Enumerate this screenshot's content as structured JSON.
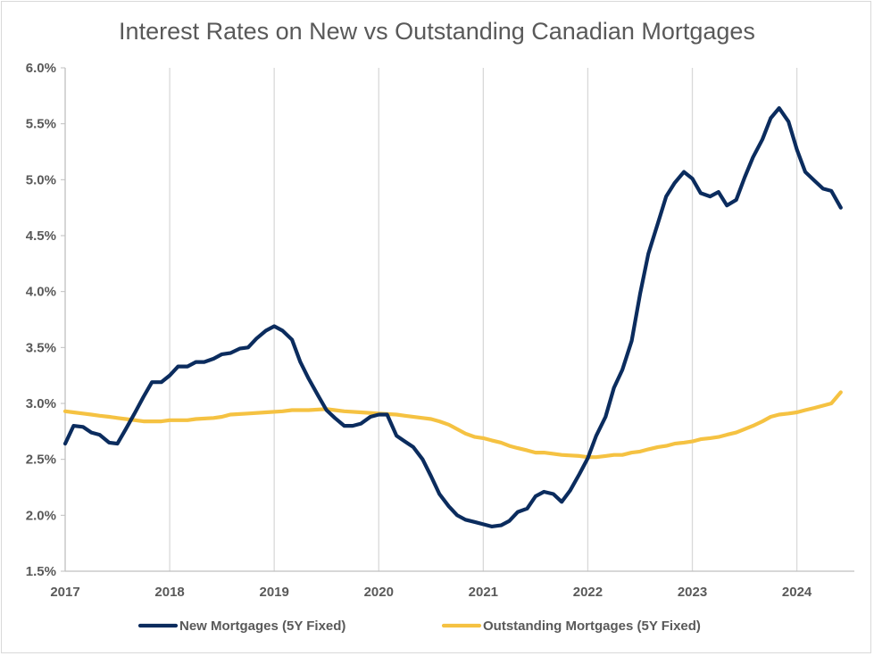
{
  "chart_data": {
    "type": "line",
    "title": "Interest Rates on New vs Outstanding Canadian Mortgages",
    "xlabel": "",
    "ylabel": "",
    "xlim": [
      2017.0,
      2024.55
    ],
    "ylim": [
      1.5,
      6.0
    ],
    "y_ticks": [
      "1.5%",
      "2.0%",
      "2.5%",
      "3.0%",
      "3.5%",
      "4.0%",
      "4.5%",
      "5.0%",
      "5.5%",
      "6.0%"
    ],
    "x_ticks": [
      "2017",
      "2018",
      "2019",
      "2020",
      "2021",
      "2022",
      "2023",
      "2024"
    ],
    "grid": "vertical",
    "legend_position": "bottom",
    "series": [
      {
        "name": "New Mortgages (5Y Fixed)",
        "color": "#0b2c5e",
        "points": [
          [
            2017.0,
            2.64
          ],
          [
            2017.08,
            2.8
          ],
          [
            2017.17,
            2.79
          ],
          [
            2017.25,
            2.74
          ],
          [
            2017.33,
            2.72
          ],
          [
            2017.42,
            2.65
          ],
          [
            2017.5,
            2.64
          ],
          [
            2017.58,
            2.77
          ],
          [
            2017.67,
            2.92
          ],
          [
            2017.75,
            3.06
          ],
          [
            2017.83,
            3.19
          ],
          [
            2017.92,
            3.19
          ],
          [
            2018.0,
            3.25
          ],
          [
            2018.08,
            3.33
          ],
          [
            2018.17,
            3.33
          ],
          [
            2018.25,
            3.37
          ],
          [
            2018.33,
            3.37
          ],
          [
            2018.42,
            3.4
          ],
          [
            2018.5,
            3.44
          ],
          [
            2018.58,
            3.45
          ],
          [
            2018.67,
            3.49
          ],
          [
            2018.75,
            3.5
          ],
          [
            2018.83,
            3.58
          ],
          [
            2018.92,
            3.65
          ],
          [
            2019.0,
            3.69
          ],
          [
            2019.08,
            3.65
          ],
          [
            2019.17,
            3.57
          ],
          [
            2019.25,
            3.37
          ],
          [
            2019.33,
            3.22
          ],
          [
            2019.42,
            3.07
          ],
          [
            2019.5,
            2.94
          ],
          [
            2019.58,
            2.87
          ],
          [
            2019.67,
            2.8
          ],
          [
            2019.75,
            2.8
          ],
          [
            2019.83,
            2.82
          ],
          [
            2019.92,
            2.88
          ],
          [
            2020.0,
            2.9
          ],
          [
            2020.08,
            2.9
          ],
          [
            2020.17,
            2.71
          ],
          [
            2020.25,
            2.66
          ],
          [
            2020.33,
            2.61
          ],
          [
            2020.42,
            2.5
          ],
          [
            2020.5,
            2.35
          ],
          [
            2020.58,
            2.19
          ],
          [
            2020.67,
            2.08
          ],
          [
            2020.75,
            2.0
          ],
          [
            2020.83,
            1.96
          ],
          [
            2020.92,
            1.94
          ],
          [
            2021.0,
            1.92
          ],
          [
            2021.08,
            1.9
          ],
          [
            2021.17,
            1.91
          ],
          [
            2021.25,
            1.95
          ],
          [
            2021.33,
            2.03
          ],
          [
            2021.42,
            2.06
          ],
          [
            2021.5,
            2.17
          ],
          [
            2021.58,
            2.21
          ],
          [
            2021.67,
            2.19
          ],
          [
            2021.75,
            2.12
          ],
          [
            2021.83,
            2.22
          ],
          [
            2021.92,
            2.37
          ],
          [
            2022.0,
            2.51
          ],
          [
            2022.08,
            2.71
          ],
          [
            2022.17,
            2.88
          ],
          [
            2022.25,
            3.14
          ],
          [
            2022.33,
            3.3
          ],
          [
            2022.42,
            3.56
          ],
          [
            2022.5,
            3.98
          ],
          [
            2022.58,
            4.34
          ],
          [
            2022.67,
            4.61
          ],
          [
            2022.75,
            4.85
          ],
          [
            2022.83,
            4.97
          ],
          [
            2022.92,
            5.07
          ],
          [
            2023.0,
            5.01
          ],
          [
            2023.08,
            4.88
          ],
          [
            2023.17,
            4.85
          ],
          [
            2023.25,
            4.89
          ],
          [
            2023.33,
            4.77
          ],
          [
            2023.42,
            4.82
          ],
          [
            2023.5,
            5.02
          ],
          [
            2023.58,
            5.2
          ],
          [
            2023.67,
            5.36
          ],
          [
            2023.75,
            5.55
          ],
          [
            2023.83,
            5.64
          ],
          [
            2023.92,
            5.52
          ],
          [
            2024.0,
            5.27
          ],
          [
            2024.08,
            5.07
          ],
          [
            2024.17,
            4.99
          ],
          [
            2024.25,
            4.92
          ],
          [
            2024.33,
            4.9
          ],
          [
            2024.42,
            4.75
          ]
        ]
      },
      {
        "name": "Outstanding Mortgages (5Y Fixed)",
        "color": "#f5c242",
        "points": [
          [
            2017.0,
            2.93
          ],
          [
            2017.08,
            2.92
          ],
          [
            2017.17,
            2.91
          ],
          [
            2017.25,
            2.9
          ],
          [
            2017.33,
            2.89
          ],
          [
            2017.42,
            2.88
          ],
          [
            2017.5,
            2.87
          ],
          [
            2017.58,
            2.86
          ],
          [
            2017.67,
            2.85
          ],
          [
            2017.75,
            2.84
          ],
          [
            2017.83,
            2.84
          ],
          [
            2017.92,
            2.84
          ],
          [
            2018.0,
            2.85
          ],
          [
            2018.17,
            2.85
          ],
          [
            2018.25,
            2.86
          ],
          [
            2018.42,
            2.87
          ],
          [
            2018.5,
            2.88
          ],
          [
            2018.58,
            2.9
          ],
          [
            2018.75,
            2.91
          ],
          [
            2018.92,
            2.92
          ],
          [
            2019.08,
            2.93
          ],
          [
            2019.17,
            2.94
          ],
          [
            2019.33,
            2.94
          ],
          [
            2019.5,
            2.95
          ],
          [
            2019.58,
            2.94
          ],
          [
            2019.67,
            2.93
          ],
          [
            2019.83,
            2.92
          ],
          [
            2020.0,
            2.91
          ],
          [
            2020.17,
            2.9
          ],
          [
            2020.25,
            2.89
          ],
          [
            2020.42,
            2.87
          ],
          [
            2020.5,
            2.86
          ],
          [
            2020.58,
            2.84
          ],
          [
            2020.67,
            2.81
          ],
          [
            2020.75,
            2.77
          ],
          [
            2020.83,
            2.73
          ],
          [
            2020.92,
            2.7
          ],
          [
            2021.0,
            2.69
          ],
          [
            2021.08,
            2.67
          ],
          [
            2021.17,
            2.65
          ],
          [
            2021.25,
            2.62
          ],
          [
            2021.33,
            2.6
          ],
          [
            2021.42,
            2.58
          ],
          [
            2021.5,
            2.56
          ],
          [
            2021.58,
            2.56
          ],
          [
            2021.67,
            2.55
          ],
          [
            2021.75,
            2.54
          ],
          [
            2021.92,
            2.53
          ],
          [
            2022.0,
            2.52
          ],
          [
            2022.08,
            2.52
          ],
          [
            2022.17,
            2.53
          ],
          [
            2022.25,
            2.54
          ],
          [
            2022.33,
            2.54
          ],
          [
            2022.42,
            2.56
          ],
          [
            2022.5,
            2.57
          ],
          [
            2022.58,
            2.59
          ],
          [
            2022.67,
            2.61
          ],
          [
            2022.75,
            2.62
          ],
          [
            2022.83,
            2.64
          ],
          [
            2022.92,
            2.65
          ],
          [
            2023.0,
            2.66
          ],
          [
            2023.08,
            2.68
          ],
          [
            2023.17,
            2.69
          ],
          [
            2023.25,
            2.7
          ],
          [
            2023.33,
            2.72
          ],
          [
            2023.42,
            2.74
          ],
          [
            2023.5,
            2.77
          ],
          [
            2023.58,
            2.8
          ],
          [
            2023.67,
            2.84
          ],
          [
            2023.75,
            2.88
          ],
          [
            2023.83,
            2.9
          ],
          [
            2023.92,
            2.91
          ],
          [
            2024.0,
            2.92
          ],
          [
            2024.08,
            2.94
          ],
          [
            2024.17,
            2.96
          ],
          [
            2024.25,
            2.98
          ],
          [
            2024.33,
            3.0
          ],
          [
            2024.42,
            3.1
          ]
        ]
      }
    ]
  }
}
